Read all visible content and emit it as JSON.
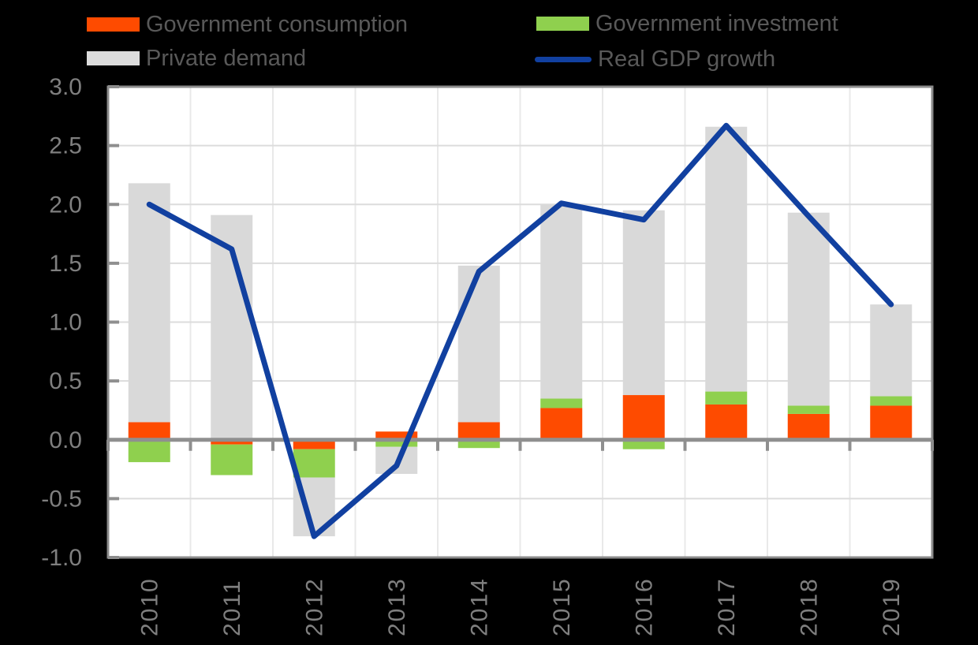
{
  "chart_data": {
    "type": "bar",
    "subtype": "stacked-bars-with-line-overlay",
    "title": "",
    "xlabel": "",
    "ylabel": "",
    "categories": [
      "2010",
      "2011",
      "2012",
      "2013",
      "2014",
      "2015",
      "2016",
      "2017",
      "2018",
      "2019"
    ],
    "series": [
      {
        "name": "Government consumption",
        "type": "bar",
        "color": "#FE4B00",
        "values": [
          0.15,
          -0.04,
          -0.08,
          0.07,
          0.15,
          0.27,
          0.38,
          0.3,
          0.22,
          0.29
        ]
      },
      {
        "name": "Government investment",
        "type": "bar",
        "color": "#8FD04E",
        "values": [
          -0.19,
          -0.26,
          -0.24,
          -0.06,
          -0.07,
          0.08,
          -0.08,
          0.11,
          0.07,
          0.08
        ]
      },
      {
        "name": "Private demand",
        "type": "bar",
        "color": "#D9D9D9",
        "values": [
          2.03,
          1.91,
          -0.5,
          -0.23,
          1.33,
          1.65,
          1.57,
          2.25,
          1.64,
          0.78
        ]
      },
      {
        "name": "Real GDP growth",
        "type": "line",
        "color": "#1140A0",
        "values": [
          2.0,
          1.62,
          -0.82,
          -0.22,
          1.43,
          2.01,
          1.87,
          2.67,
          1.9,
          1.15
        ]
      }
    ],
    "stacked": true,
    "ylim": [
      -1.0,
      3.0
    ],
    "ytick_step": 0.5,
    "ytick_labels": [
      "3.0",
      "2.5",
      "2.0",
      "1.5",
      "1.0",
      "0.5",
      "0.0",
      "-0.5",
      "-1.0"
    ],
    "grid": true,
    "legend_position": "top"
  },
  "legend": {
    "items": [
      {
        "label": "Government consumption",
        "swatch": "rect",
        "color": "#FE4B00"
      },
      {
        "label": "Government investment",
        "swatch": "rect",
        "color": "#8FD04E"
      },
      {
        "label": "Private demand",
        "swatch": "rect",
        "color": "#DCDCDC"
      },
      {
        "label": "Real GDP growth",
        "swatch": "line",
        "color": "#1140A0"
      }
    ]
  },
  "colors": {
    "background": "#000000",
    "plot_background": "#FFFFFF",
    "gridline_horizontal": "#DCDCDC",
    "gridline_vertical": "#E9E9E9",
    "zero_axis": "#8F8F8F",
    "plot_border": "#8C8C8C",
    "tick": "#8F8F8F",
    "tick_label": "#7F7F7F",
    "legend_text": "#595959"
  }
}
